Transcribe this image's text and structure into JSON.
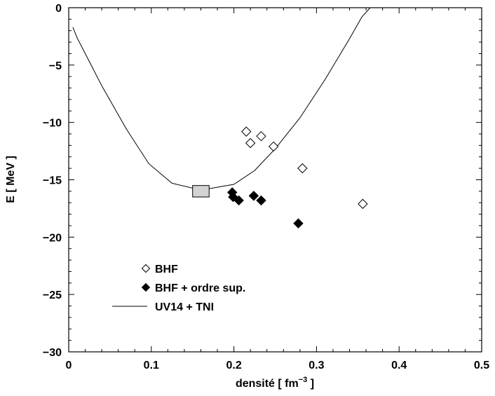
{
  "chart_data": {
    "type": "scatter",
    "xlabel": "densité  [ fm",
    "xlabel_sup": "−3",
    "xlabel_end": " ]",
    "ylabel": "E  [ MeV ]",
    "xlim": [
      0,
      0.5
    ],
    "ylim": [
      -30,
      0
    ],
    "xticks": [
      "0",
      "0.1",
      "0.2",
      "0.3",
      "0.4",
      "0.5"
    ],
    "yticks": [
      "0",
      "−5",
      "−10",
      "−15",
      "−20",
      "−25",
      "−30"
    ],
    "legend_position": "lower-left",
    "series": [
      {
        "name": "BHF",
        "marker": "diamond-open",
        "points": [
          {
            "x": 0.215,
            "y": -10.8
          },
          {
            "x": 0.22,
            "y": -11.8
          },
          {
            "x": 0.233,
            "y": -11.2
          },
          {
            "x": 0.248,
            "y": -12.1
          },
          {
            "x": 0.283,
            "y": -14.0
          },
          {
            "x": 0.356,
            "y": -17.1
          }
        ]
      },
      {
        "name": "BHF + ordre sup.",
        "marker": "diamond-filled",
        "points": [
          {
            "x": 0.198,
            "y": -16.1
          },
          {
            "x": 0.199,
            "y": -16.5
          },
          {
            "x": 0.206,
            "y": -16.8
          },
          {
            "x": 0.224,
            "y": -16.4
          },
          {
            "x": 0.233,
            "y": -16.8
          },
          {
            "x": 0.278,
            "y": -18.8
          }
        ]
      },
      {
        "name": "UV14 + TNI",
        "marker": "line",
        "points": [
          {
            "x": 0.005,
            "y": -1.7
          },
          {
            "x": 0.01,
            "y": -2.6
          },
          {
            "x": 0.02,
            "y": -4.0
          },
          {
            "x": 0.04,
            "y": -6.8
          },
          {
            "x": 0.07,
            "y": -10.6
          },
          {
            "x": 0.097,
            "y": -13.6
          },
          {
            "x": 0.125,
            "y": -15.3
          },
          {
            "x": 0.16,
            "y": -15.9
          },
          {
            "x": 0.2,
            "y": -15.4
          },
          {
            "x": 0.225,
            "y": -14.2
          },
          {
            "x": 0.25,
            "y": -12.3
          },
          {
            "x": 0.28,
            "y": -9.6
          },
          {
            "x": 0.31,
            "y": -6.3
          },
          {
            "x": 0.34,
            "y": -2.7
          },
          {
            "x": 0.355,
            "y": -0.8
          },
          {
            "x": 0.365,
            "y": 0.0
          }
        ]
      }
    ],
    "annotations": [
      {
        "type": "box",
        "x": 0.16,
        "y": -16.0,
        "dx": 0.01,
        "dy": 0.5,
        "fill": "#d3d3d3"
      }
    ]
  }
}
